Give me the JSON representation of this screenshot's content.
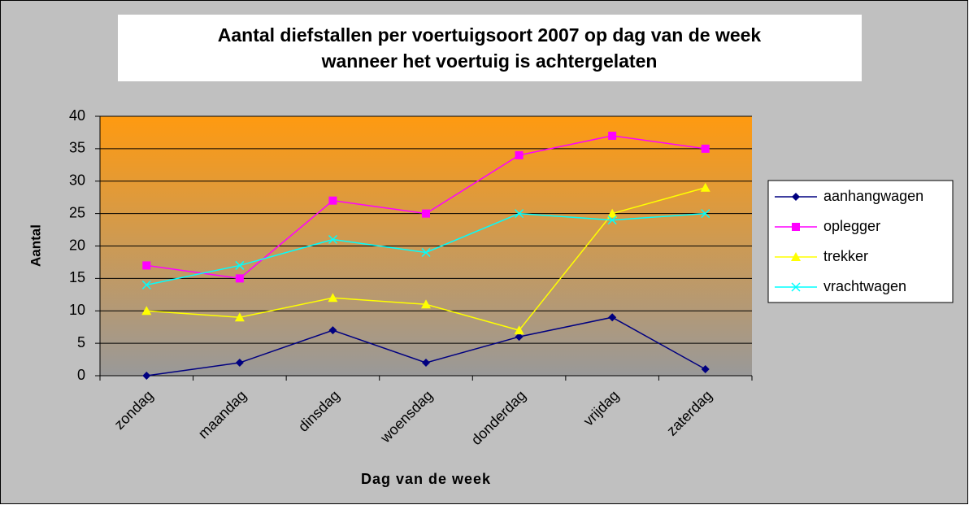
{
  "chart_data": {
    "type": "line",
    "title": [
      "Aantal diefstallen per voertuigsoort 2007 op dag van de week",
      "wanneer het voertuig is achtergelaten"
    ],
    "x_label": "Dag van de week",
    "y_label": "Aantal",
    "categories": [
      "zondag",
      "maandag",
      "dinsdag",
      "woensdag",
      "donderdag",
      "vrijdag",
      "zaterdag"
    ],
    "series": [
      {
        "name": "aanhangwagen",
        "color": "#000080",
        "marker": "diamond",
        "values": [
          0,
          2,
          7,
          2,
          6,
          9,
          1
        ]
      },
      {
        "name": "oplegger",
        "color": "#ff00ff",
        "marker": "square",
        "values": [
          17,
          15,
          27,
          25,
          34,
          37,
          35
        ]
      },
      {
        "name": "trekker",
        "color": "#ffff00",
        "marker": "triangle",
        "values": [
          10,
          9,
          12,
          11,
          7,
          25,
          29
        ]
      },
      {
        "name": "vrachtwagen",
        "color": "#00ffff",
        "marker": "x",
        "values": [
          14,
          17,
          21,
          19,
          25,
          24,
          25
        ]
      }
    ],
    "ylim": [
      0,
      40
    ],
    "yticks": [
      0,
      5,
      10,
      15,
      20,
      25,
      30,
      35,
      40
    ],
    "grid": true,
    "legend": "right"
  }
}
